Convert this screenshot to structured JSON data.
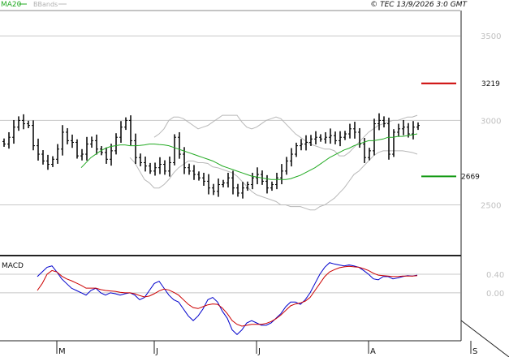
{
  "header": {
    "legend": [
      {
        "name": "MA20",
        "color": "#22aa22"
      },
      {
        "name": "BBands",
        "color": "#b8b8b8"
      }
    ],
    "copyright": "© TEC 13/9/2026 3:0 GMT"
  },
  "chart_data": [
    {
      "type": "ohlc",
      "price_axis": {
        "ticks": [
          "3500",
          "3000",
          "2500"
        ],
        "tick_values": [
          3500,
          3000,
          2500
        ],
        "ylim": [
          2200,
          3650
        ]
      },
      "levels": [
        {
          "label": "3219",
          "value": 3219,
          "color": "#cc0000"
        },
        {
          "label": "2669",
          "value": 2669,
          "color": "#119911"
        }
      ],
      "x_labels": [
        "M",
        "J",
        "J",
        "A",
        "S"
      ],
      "x_label_index": [
        0,
        20,
        41,
        64,
        85
      ],
      "close": [
        2860,
        2900,
        2960,
        3000,
        2980,
        2970,
        2850,
        2800,
        2760,
        2740,
        2770,
        2830,
        2930,
        2880,
        2870,
        2790,
        2800,
        2860,
        2880,
        2830,
        2810,
        2770,
        2820,
        2900,
        2960,
        3000,
        2880,
        2780,
        2750,
        2730,
        2700,
        2720,
        2740,
        2700,
        2750,
        2900,
        2800,
        2720,
        2700,
        2680,
        2660,
        2640,
        2600,
        2580,
        2620,
        2630,
        2660,
        2600,
        2570,
        2600,
        2620,
        2660,
        2680,
        2640,
        2600,
        2620,
        2660,
        2700,
        2760,
        2800,
        2850,
        2860,
        2870,
        2890,
        2900,
        2890,
        2900,
        2910,
        2880,
        2900,
        2920,
        2950,
        2930,
        2860,
        2780,
        2820,
        2980,
        3000,
        2980,
        2800,
        2930,
        2950,
        2960,
        2920,
        2960,
        2970
      ],
      "ma20": [
        2720,
        2750,
        2780,
        2800,
        2820,
        2835,
        2845,
        2850,
        2855,
        2855,
        2850,
        2850,
        2852,
        2855,
        2860,
        2860,
        2857,
        2855,
        2850,
        2840,
        2830,
        2820,
        2810,
        2800,
        2790,
        2780,
        2770,
        2760,
        2745,
        2730,
        2720,
        2710,
        2700,
        2690,
        2680,
        2670,
        2665,
        2660,
        2655,
        2650,
        2650,
        2650,
        2650,
        2655,
        2665,
        2675,
        2690,
        2705,
        2720,
        2740,
        2760,
        2780,
        2795,
        2810,
        2825,
        2835,
        2850,
        2860,
        2870,
        2880,
        2880,
        2885,
        2890,
        2900,
        2900,
        2905,
        2905,
        2910,
        2915,
        2920
      ],
      "bb_upper": [
        2900,
        2920,
        2950,
        3000,
        3020,
        3020,
        3010,
        2990,
        2970,
        2950,
        2960,
        2970,
        2990,
        3010,
        3030,
        3030,
        3030,
        3030,
        2990,
        2960,
        2950,
        2960,
        2980,
        3000,
        3010,
        3020,
        3010,
        2980,
        2950,
        2920,
        2900,
        2880,
        2860,
        2850,
        2840,
        2830,
        2830,
        2820,
        2790,
        2790,
        2810,
        2840,
        2870,
        2900,
        2930,
        2950,
        2970,
        2980,
        2990,
        3000,
        3000,
        3010,
        3020,
        3020,
        3030
      ],
      "bb_lower": [
        2780,
        2750,
        2700,
        2650,
        2630,
        2600,
        2600,
        2620,
        2650,
        2690,
        2720,
        2740,
        2760,
        2760,
        2750,
        2750,
        2745,
        2725,
        2720,
        2710,
        2700,
        2690,
        2670,
        2640,
        2610,
        2580,
        2560,
        2550,
        2540,
        2530,
        2520,
        2500,
        2500,
        2490,
        2490,
        2490,
        2480,
        2470,
        2470,
        2490,
        2500,
        2520,
        2540,
        2570,
        2600,
        2640,
        2680,
        2700,
        2730,
        2760,
        2790,
        2810,
        2820,
        2820,
        2820,
        2820,
        2820,
        2815,
        2810,
        2800
      ]
    },
    {
      "type": "line",
      "title": "MACD",
      "y_ticks": [
        "0.40",
        "0.00"
      ],
      "series": [
        {
          "color": "#0000cc",
          "values": [
            0.35,
            0.45,
            0.55,
            0.58,
            0.45,
            0.3,
            0.2,
            0.1,
            0.05,
            0.0,
            -0.05,
            0.05,
            0.1,
            0.0,
            -0.05,
            0.0,
            -0.02,
            -0.05,
            -0.02,
            0.0,
            -0.05,
            -0.15,
            -0.1,
            0.05,
            0.2,
            0.25,
            0.1,
            -0.05,
            -0.15,
            -0.2,
            -0.35,
            -0.5,
            -0.6,
            -0.5,
            -0.35,
            -0.15,
            -0.1,
            -0.2,
            -0.4,
            -0.55,
            -0.8,
            -0.9,
            -0.8,
            -0.65,
            -0.6,
            -0.65,
            -0.7,
            -0.7,
            -0.65,
            -0.55,
            -0.45,
            -0.3,
            -0.2,
            -0.2,
            -0.25,
            -0.15,
            0.0,
            0.2,
            0.4,
            0.55,
            0.65,
            0.62,
            0.6,
            0.58,
            0.6,
            0.58,
            0.55,
            0.48,
            0.4,
            0.3,
            0.28,
            0.35,
            0.35,
            0.3,
            0.32,
            0.35,
            0.37,
            0.36,
            0.38
          ]
        },
        {
          "color": "#cc0000",
          "values": [
            0.05,
            0.2,
            0.4,
            0.48,
            0.45,
            0.36,
            0.3,
            0.26,
            0.21,
            0.16,
            0.1,
            0.1,
            0.1,
            0.07,
            0.05,
            0.04,
            0.03,
            0.01,
            0.0,
            0.0,
            -0.02,
            -0.06,
            -0.09,
            -0.07,
            -0.02,
            0.04,
            0.08,
            0.06,
            0.01,
            -0.05,
            -0.15,
            -0.25,
            -0.32,
            -0.34,
            -0.3,
            -0.26,
            -0.24,
            -0.25,
            -0.33,
            -0.45,
            -0.6,
            -0.68,
            -0.72,
            -0.7,
            -0.68,
            -0.68,
            -0.68,
            -0.66,
            -0.62,
            -0.56,
            -0.48,
            -0.38,
            -0.28,
            -0.24,
            -0.22,
            -0.18,
            -0.1,
            0.05,
            0.2,
            0.35,
            0.45,
            0.5,
            0.54,
            0.56,
            0.57,
            0.56,
            0.55,
            0.52,
            0.48,
            0.42,
            0.38,
            0.37,
            0.36,
            0.35,
            0.35,
            0.36,
            0.36,
            0.36,
            0.37
          ]
        }
      ]
    }
  ]
}
